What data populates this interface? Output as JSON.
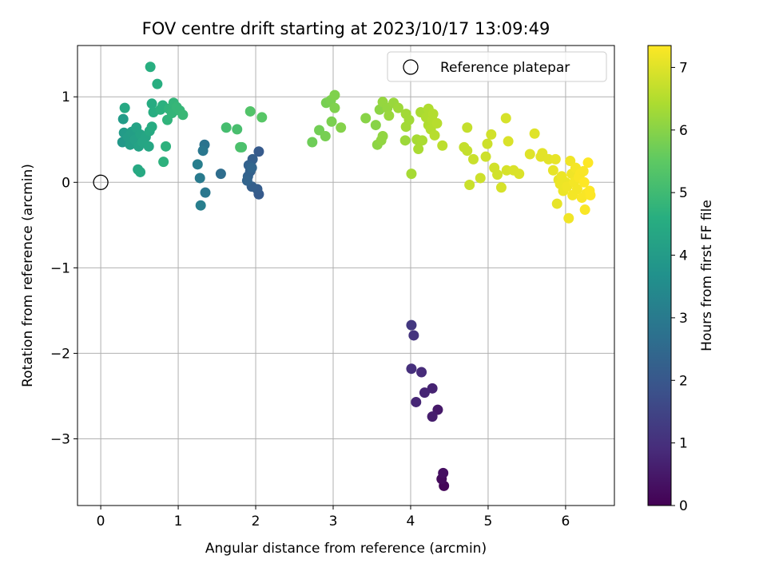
{
  "chart_data": {
    "type": "scatter",
    "title": "FOV centre drift starting at 2023/10/17 13:09:49",
    "xlabel": "Angular distance from reference (arcmin)",
    "ylabel": "Rotation from reference (arcmin)",
    "xlim": [
      -0.3,
      6.63
    ],
    "ylim": [
      -3.78,
      1.6
    ],
    "x_ticks": [
      0,
      1,
      2,
      3,
      4,
      5,
      6
    ],
    "x_tick_labels": [
      "0",
      "1",
      "2",
      "3",
      "4",
      "5",
      "6"
    ],
    "y_ticks": [
      1,
      0,
      -1,
      -2,
      -3
    ],
    "y_tick_labels": [
      "1",
      "0",
      "−1",
      "−2",
      "−3"
    ],
    "grid": true,
    "legend": {
      "placement": "top-right",
      "entries": [
        "Reference platepar"
      ]
    },
    "reference_point": {
      "x": 0,
      "y": 0
    },
    "colorbar": {
      "label": "Hours from first FF file",
      "range": [
        0,
        7.35
      ],
      "ticks": [
        0,
        1,
        2,
        3,
        4,
        5,
        6,
        7
      ],
      "tick_labels": [
        "0",
        "1",
        "2",
        "3",
        "4",
        "5",
        "6",
        "7"
      ],
      "colormap": "viridis"
    },
    "series": [
      {
        "points": [
          {
            "x": 4.43,
            "y": -3.55,
            "h": 0.1
          },
          {
            "x": 4.4,
            "y": -3.47,
            "h": 0.2
          },
          {
            "x": 4.42,
            "y": -3.4,
            "h": 0.3
          },
          {
            "x": 4.35,
            "y": -2.66,
            "h": 0.5
          },
          {
            "x": 4.28,
            "y": -2.74,
            "h": 0.6
          },
          {
            "x": 4.28,
            "y": -2.41,
            "h": 0.7
          },
          {
            "x": 4.18,
            "y": -2.46,
            "h": 0.75
          },
          {
            "x": 4.07,
            "y": -2.57,
            "h": 0.8
          },
          {
            "x": 4.14,
            "y": -2.22,
            "h": 0.9
          },
          {
            "x": 4.01,
            "y": -2.18,
            "h": 1.0
          },
          {
            "x": 4.04,
            "y": -1.79,
            "h": 1.1
          },
          {
            "x": 4.01,
            "y": -1.67,
            "h": 1.2
          },
          {
            "x": 2.04,
            "y": 0.36,
            "h": 2.1
          },
          {
            "x": 2.04,
            "y": -0.14,
            "h": 2.1
          },
          {
            "x": 2.02,
            "y": -0.08,
            "h": 2.15
          },
          {
            "x": 1.96,
            "y": 0.27,
            "h": 2.2
          },
          {
            "x": 1.95,
            "y": -0.05,
            "h": 2.2
          },
          {
            "x": 1.93,
            "y": 0.13,
            "h": 2.25
          },
          {
            "x": 1.91,
            "y": 0.2,
            "h": 2.3
          },
          {
            "x": 1.9,
            "y": 0.07,
            "h": 2.3
          },
          {
            "x": 1.89,
            "y": 0.02,
            "h": 2.35
          },
          {
            "x": 1.95,
            "y": 0.17,
            "h": 2.4
          },
          {
            "x": 1.55,
            "y": 0.1,
            "h": 2.6
          },
          {
            "x": 1.34,
            "y": 0.44,
            "h": 2.8
          },
          {
            "x": 1.32,
            "y": 0.37,
            "h": 2.9
          },
          {
            "x": 1.35,
            "y": -0.12,
            "h": 2.9
          },
          {
            "x": 1.28,
            "y": 0.05,
            "h": 3.0
          },
          {
            "x": 1.25,
            "y": 0.21,
            "h": 3.1
          },
          {
            "x": 1.29,
            "y": -0.27,
            "h": 3.1
          },
          {
            "x": 0.28,
            "y": 0.47,
            "h": 3.9
          },
          {
            "x": 0.3,
            "y": 0.58,
            "h": 4.0
          },
          {
            "x": 0.29,
            "y": 0.74,
            "h": 4.0
          },
          {
            "x": 0.35,
            "y": 0.53,
            "h": 4.05
          },
          {
            "x": 0.38,
            "y": 0.44,
            "h": 4.1
          },
          {
            "x": 0.4,
            "y": 0.59,
            "h": 4.1
          },
          {
            "x": 0.44,
            "y": 0.5,
            "h": 4.15
          },
          {
            "x": 0.46,
            "y": 0.64,
            "h": 4.2
          },
          {
            "x": 0.49,
            "y": 0.42,
            "h": 4.2
          },
          {
            "x": 0.51,
            "y": 0.56,
            "h": 4.25
          },
          {
            "x": 0.54,
            "y": 0.47,
            "h": 4.3
          },
          {
            "x": 0.58,
            "y": 0.53,
            "h": 4.3
          },
          {
            "x": 0.62,
            "y": 0.42,
            "h": 4.35
          },
          {
            "x": 0.31,
            "y": 0.87,
            "h": 4.4
          },
          {
            "x": 0.48,
            "y": 0.15,
            "h": 4.4
          },
          {
            "x": 0.51,
            "y": 0.12,
            "h": 4.45
          },
          {
            "x": 0.63,
            "y": 0.6,
            "h": 4.45
          },
          {
            "x": 0.66,
            "y": 0.65,
            "h": 4.5
          },
          {
            "x": 0.66,
            "y": 0.92,
            "h": 4.5
          },
          {
            "x": 0.68,
            "y": 0.82,
            "h": 4.55
          },
          {
            "x": 0.64,
            "y": 1.35,
            "h": 4.6
          },
          {
            "x": 0.73,
            "y": 1.15,
            "h": 4.6
          },
          {
            "x": 0.77,
            "y": 0.85,
            "h": 4.65
          },
          {
            "x": 0.8,
            "y": 0.9,
            "h": 4.65
          },
          {
            "x": 0.81,
            "y": 0.24,
            "h": 4.7
          },
          {
            "x": 0.84,
            "y": 0.42,
            "h": 4.7
          },
          {
            "x": 0.86,
            "y": 0.73,
            "h": 4.75
          },
          {
            "x": 0.88,
            "y": 0.86,
            "h": 4.75
          },
          {
            "x": 0.92,
            "y": 0.81,
            "h": 4.8
          },
          {
            "x": 0.94,
            "y": 0.93,
            "h": 4.8
          },
          {
            "x": 0.98,
            "y": 0.88,
            "h": 4.85
          },
          {
            "x": 1.02,
            "y": 0.84,
            "h": 4.85
          },
          {
            "x": 1.06,
            "y": 0.79,
            "h": 4.9
          },
          {
            "x": 1.62,
            "y": 0.64,
            "h": 5.1
          },
          {
            "x": 1.76,
            "y": 0.62,
            "h": 5.15
          },
          {
            "x": 1.8,
            "y": 0.41,
            "h": 5.2
          },
          {
            "x": 1.82,
            "y": 0.41,
            "h": 5.2
          },
          {
            "x": 1.93,
            "y": 0.83,
            "h": 5.3
          },
          {
            "x": 2.08,
            "y": 0.76,
            "h": 5.4
          },
          {
            "x": 2.73,
            "y": 0.47,
            "h": 5.7
          },
          {
            "x": 2.82,
            "y": 0.61,
            "h": 5.75
          },
          {
            "x": 2.9,
            "y": 0.54,
            "h": 5.8
          },
          {
            "x": 2.91,
            "y": 0.93,
            "h": 5.8
          },
          {
            "x": 2.97,
            "y": 0.96,
            "h": 5.85
          },
          {
            "x": 2.98,
            "y": 0.71,
            "h": 5.85
          },
          {
            "x": 3.02,
            "y": 0.87,
            "h": 5.9
          },
          {
            "x": 3.02,
            "y": 1.02,
            "h": 5.9
          },
          {
            "x": 3.1,
            "y": 0.64,
            "h": 5.95
          },
          {
            "x": 3.42,
            "y": 0.75,
            "h": 6.0
          },
          {
            "x": 3.55,
            "y": 0.67,
            "h": 6.0
          },
          {
            "x": 3.57,
            "y": 0.44,
            "h": 6.05
          },
          {
            "x": 3.6,
            "y": 0.85,
            "h": 6.05
          },
          {
            "x": 3.62,
            "y": 0.49,
            "h": 6.1
          },
          {
            "x": 3.64,
            "y": 0.54,
            "h": 6.1
          },
          {
            "x": 3.64,
            "y": 0.94,
            "h": 6.15
          },
          {
            "x": 3.7,
            "y": 0.87,
            "h": 6.15
          },
          {
            "x": 3.72,
            "y": 0.78,
            "h": 6.2
          },
          {
            "x": 3.78,
            "y": 0.93,
            "h": 6.2
          },
          {
            "x": 3.84,
            "y": 0.87,
            "h": 6.25
          },
          {
            "x": 3.93,
            "y": 0.49,
            "h": 6.25
          },
          {
            "x": 3.94,
            "y": 0.65,
            "h": 6.3
          },
          {
            "x": 3.94,
            "y": 0.8,
            "h": 6.3
          },
          {
            "x": 3.98,
            "y": 0.73,
            "h": 6.3
          },
          {
            "x": 4.01,
            "y": 0.1,
            "h": 6.35
          },
          {
            "x": 4.08,
            "y": 0.5,
            "h": 6.35
          },
          {
            "x": 4.1,
            "y": 0.39,
            "h": 6.4
          },
          {
            "x": 4.13,
            "y": 0.82,
            "h": 6.4
          },
          {
            "x": 4.15,
            "y": 0.49,
            "h": 6.4
          },
          {
            "x": 4.2,
            "y": 0.76,
            "h": 6.45
          },
          {
            "x": 4.23,
            "y": 0.67,
            "h": 6.45
          },
          {
            "x": 4.23,
            "y": 0.86,
            "h": 6.45
          },
          {
            "x": 4.26,
            "y": 0.62,
            "h": 6.5
          },
          {
            "x": 4.28,
            "y": 0.73,
            "h": 6.5
          },
          {
            "x": 4.29,
            "y": 0.8,
            "h": 6.5
          },
          {
            "x": 4.31,
            "y": 0.55,
            "h": 6.55
          },
          {
            "x": 4.34,
            "y": 0.69,
            "h": 6.55
          },
          {
            "x": 4.41,
            "y": 0.43,
            "h": 6.6
          },
          {
            "x": 4.69,
            "y": 0.41,
            "h": 6.7
          },
          {
            "x": 4.73,
            "y": 0.64,
            "h": 6.7
          },
          {
            "x": 4.73,
            "y": 0.37,
            "h": 6.7
          },
          {
            "x": 4.76,
            "y": -0.03,
            "h": 6.75
          },
          {
            "x": 4.81,
            "y": 0.27,
            "h": 6.75
          },
          {
            "x": 4.9,
            "y": 0.05,
            "h": 6.8
          },
          {
            "x": 4.97,
            "y": 0.3,
            "h": 6.8
          },
          {
            "x": 4.99,
            "y": 0.45,
            "h": 6.8
          },
          {
            "x": 5.04,
            "y": 0.56,
            "h": 6.85
          },
          {
            "x": 5.08,
            "y": 0.17,
            "h": 6.85
          },
          {
            "x": 5.12,
            "y": 0.09,
            "h": 6.85
          },
          {
            "x": 5.17,
            "y": -0.06,
            "h": 6.9
          },
          {
            "x": 5.23,
            "y": 0.75,
            "h": 6.9
          },
          {
            "x": 5.24,
            "y": 0.14,
            "h": 6.9
          },
          {
            "x": 5.26,
            "y": 0.48,
            "h": 6.95
          },
          {
            "x": 5.33,
            "y": 0.14,
            "h": 6.95
          },
          {
            "x": 5.4,
            "y": 0.1,
            "h": 6.95
          },
          {
            "x": 5.54,
            "y": 0.33,
            "h": 7.0
          },
          {
            "x": 5.6,
            "y": 0.57,
            "h": 7.0
          },
          {
            "x": 5.68,
            "y": 0.3,
            "h": 7.05
          },
          {
            "x": 5.7,
            "y": 0.34,
            "h": 7.05
          },
          {
            "x": 5.78,
            "y": 0.27,
            "h": 7.05
          },
          {
            "x": 5.84,
            "y": 0.14,
            "h": 7.1
          },
          {
            "x": 5.87,
            "y": 0.27,
            "h": 7.1
          },
          {
            "x": 5.89,
            "y": -0.25,
            "h": 7.1
          },
          {
            "x": 5.91,
            "y": 0.03,
            "h": 7.1
          },
          {
            "x": 5.93,
            "y": -0.02,
            "h": 7.15
          },
          {
            "x": 5.95,
            "y": 0.07,
            "h": 7.15
          },
          {
            "x": 5.97,
            "y": -0.1,
            "h": 7.15
          },
          {
            "x": 6.0,
            "y": 0.0,
            "h": 7.15
          },
          {
            "x": 6.02,
            "y": -0.05,
            "h": 7.2
          },
          {
            "x": 6.04,
            "y": -0.42,
            "h": 7.2
          },
          {
            "x": 6.06,
            "y": 0.25,
            "h": 7.2
          },
          {
            "x": 6.08,
            "y": 0.1,
            "h": 7.2
          },
          {
            "x": 6.09,
            "y": -0.15,
            "h": 7.25
          },
          {
            "x": 6.11,
            "y": 0.0,
            "h": 7.25
          },
          {
            "x": 6.13,
            "y": 0.17,
            "h": 7.25
          },
          {
            "x": 6.15,
            "y": -0.08,
            "h": 7.25
          },
          {
            "x": 6.17,
            "y": 0.06,
            "h": 7.3
          },
          {
            "x": 6.19,
            "y": 0.1,
            "h": 7.3
          },
          {
            "x": 6.21,
            "y": -0.18,
            "h": 7.3
          },
          {
            "x": 6.23,
            "y": 0.13,
            "h": 7.3
          },
          {
            "x": 6.25,
            "y": -0.32,
            "h": 7.3
          },
          {
            "x": 6.27,
            "y": -0.13,
            "h": 7.3
          },
          {
            "x": 6.29,
            "y": 0.23,
            "h": 7.35
          },
          {
            "x": 6.31,
            "y": -0.1,
            "h": 7.35
          },
          {
            "x": 6.32,
            "y": -0.15,
            "h": 7.35
          },
          {
            "x": 6.24,
            "y": 0.0,
            "h": 7.35
          }
        ]
      }
    ]
  }
}
